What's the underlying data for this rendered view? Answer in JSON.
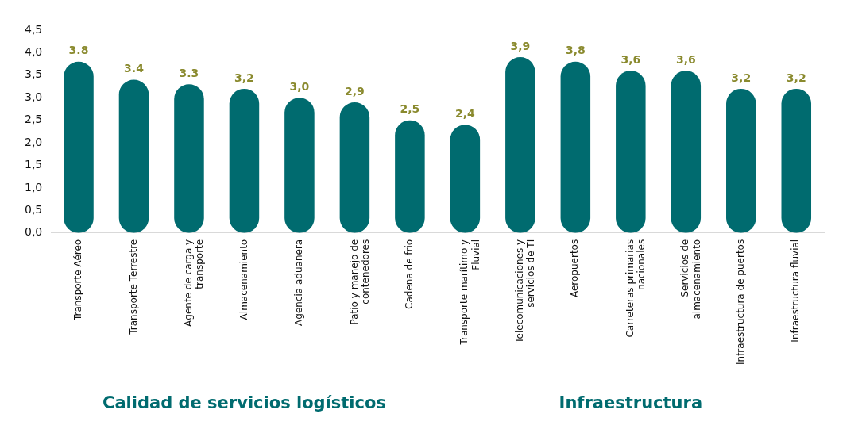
{
  "chart_data": {
    "type": "bar",
    "categories": [
      "Transporte Aéreo",
      "Transporte Terrestre",
      "Agente de carga y transporte",
      "Almacenamiento",
      "Agencia aduanera",
      "Patio y manejo de contenedores",
      "Cadena de frio",
      "Transporte marítimo y Fluvial",
      "Telecomunicaciones y servicios de TI",
      "Aeropuertos",
      "Carreteras primarias nacionales",
      "Servicios de almacenamiento",
      "Infraestructura de puertos",
      "Infraestructura fluvial"
    ],
    "values": [
      3.8,
      3.4,
      3.3,
      3.2,
      3.0,
      2.9,
      2.5,
      2.4,
      3.9,
      3.8,
      3.6,
      3.6,
      3.2,
      3.2
    ],
    "value_labels": [
      "3.8",
      "3.4",
      "3.3",
      "3,2",
      "3,0",
      "2,9",
      "2,5",
      "2,4",
      "3,9",
      "3,8",
      "3,6",
      "3,6",
      "3,2",
      "3,2"
    ],
    "color": "#006b6f",
    "ylim": [
      0,
      4.5
    ],
    "yticks": [
      {
        "value": 0,
        "label": "0,0"
      },
      {
        "value": 0.5,
        "label": "0,5"
      },
      {
        "value": 1,
        "label": "1,0"
      },
      {
        "value": 1.5,
        "label": "1,5"
      },
      {
        "value": 2,
        "label": "2,0"
      },
      {
        "value": 2.5,
        "label": "2,5"
      },
      {
        "value": 3,
        "label": "3,0"
      },
      {
        "value": 3.5,
        "label": "3,5"
      },
      {
        "value": 4,
        "label": "4,0"
      },
      {
        "value": 4.5,
        "label": "4,5"
      }
    ],
    "grid": false,
    "legend": false,
    "annotations": [
      "Calidad de servicios logísticos",
      "Infraestructura"
    ]
  }
}
